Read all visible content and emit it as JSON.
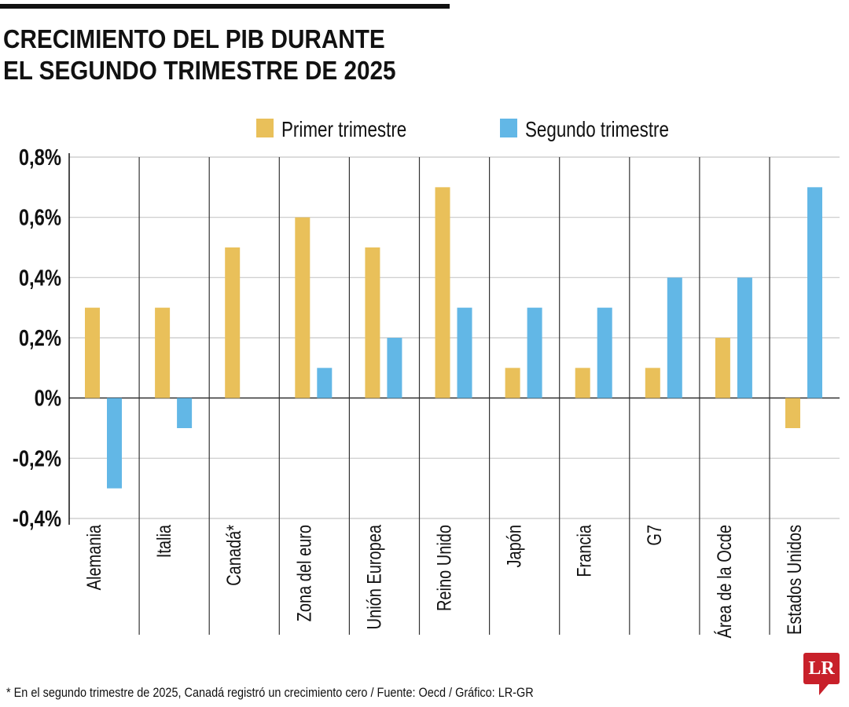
{
  "title_lines": [
    "CRECIMIENTO DEL PIB DURANTE",
    "EL SEGUNDO TRIMESTRE DE 2025"
  ],
  "footnote": "* En el segundo trimestre de 2025, Canadá registró un crecimiento cero / Fuente: Oecd / Gráfico: LR-GR",
  "logo_text": "LR",
  "chart_data": {
    "type": "bar",
    "title": "CRECIMIENTO DEL PIB DURANTE EL SEGUNDO TRIMESTRE DE 2025",
    "categories": [
      "Alemania",
      "Italia",
      "Canadá*",
      "Zona del euro",
      "Unión Europea",
      "Reino Unido",
      "Japón",
      "Francia",
      "G7",
      "Área de la Ocde",
      "Estados Unidos"
    ],
    "series": [
      {
        "name": "Primer trimestre",
        "color": "#e9c05a",
        "values": [
          0.3,
          0.3,
          0.5,
          0.6,
          0.5,
          0.7,
          0.1,
          0.1,
          0.1,
          0.2,
          -0.1
        ]
      },
      {
        "name": "Segundo trimestre",
        "color": "#62b7e6",
        "values": [
          -0.3,
          -0.1,
          0,
          0.1,
          0.2,
          0.3,
          0.3,
          0.3,
          0.4,
          0.4,
          0.7
        ]
      }
    ],
    "ylim": [
      -0.4,
      0.8
    ],
    "yticks": [
      0.8,
      0.6,
      0.4,
      0.2,
      0,
      -0.2,
      -0.4
    ],
    "ytick_labels": [
      "0,8%",
      "0,6%",
      "0,4%",
      "0,2%",
      "0%",
      "-0,2%",
      "-0,4%"
    ],
    "grid": true,
    "legend": "top-center"
  }
}
